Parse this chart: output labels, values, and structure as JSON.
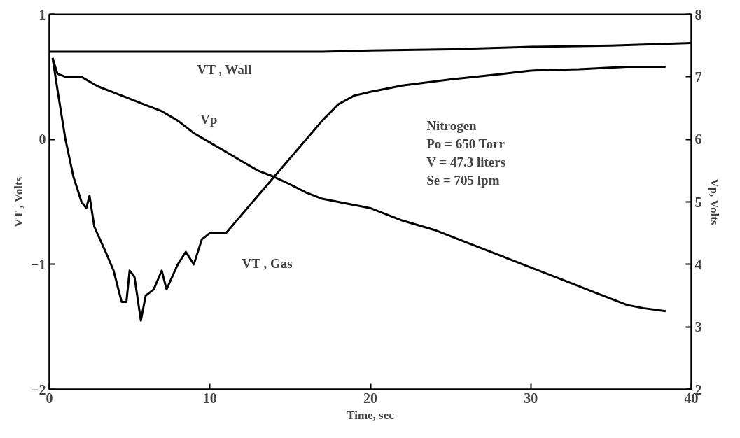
{
  "chart_data": {
    "type": "line",
    "xlabel": "Time, sec",
    "ylabel": "VT , Volts",
    "y2label": "Vp, Volts",
    "xlim": [
      0,
      40
    ],
    "xticks": [
      0,
      10,
      20,
      30,
      40
    ],
    "ylim": [
      -2,
      1
    ],
    "yticks": [
      -2,
      -1,
      0,
      1
    ],
    "y2lim": [
      2,
      8
    ],
    "y2ticks": [
      2,
      3,
      4,
      5,
      6,
      7,
      8
    ],
    "grid": false,
    "marker": "none",
    "line_style": "solid",
    "series": [
      {
        "color": "#000000",
        "x": [
          0,
          5,
          10,
          15,
          17,
          20,
          25,
          30,
          35,
          40
        ],
        "values": [
          0.7,
          0.7,
          0.7,
          0.7,
          0.7,
          0.71,
          0.72,
          0.74,
          0.75,
          0.77
        ]
      },
      {
        "color": "#000000",
        "axis": "y2",
        "x": [
          0.2,
          0.5,
          1,
          2,
          3,
          4,
          5,
          6,
          7,
          8,
          9,
          10,
          11,
          12,
          13,
          14,
          15,
          16,
          17,
          18,
          19,
          20,
          22,
          24,
          26,
          28,
          30,
          32,
          34,
          36,
          37,
          38.4
        ],
        "values": [
          7.3,
          7.05,
          7.0,
          7.0,
          6.85,
          6.75,
          6.65,
          6.55,
          6.45,
          6.3,
          6.1,
          5.95,
          5.8,
          5.65,
          5.5,
          5.4,
          5.28,
          5.15,
          5.05,
          5.0,
          4.95,
          4.9,
          4.7,
          4.55,
          4.35,
          4.15,
          3.95,
          3.75,
          3.55,
          3.35,
          3.3,
          3.25
        ]
      },
      {
        "color": "#000000",
        "x": [
          0.2,
          0.5,
          1,
          1.5,
          2,
          2.3,
          2.5,
          2.8,
          3.5,
          4,
          4.5,
          4.8,
          5,
          5.3,
          5.7,
          6,
          6.5,
          7,
          7.3,
          8,
          8.5,
          9,
          9.5,
          10,
          11,
          12,
          13,
          14,
          15,
          16,
          17,
          18,
          19,
          20,
          22,
          25,
          28,
          30,
          33,
          36,
          38.4
        ],
        "values": [
          0.65,
          0.4,
          0.0,
          -0.3,
          -0.5,
          -0.55,
          -0.45,
          -0.7,
          -0.9,
          -1.05,
          -1.3,
          -1.3,
          -1.05,
          -1.1,
          -1.45,
          -1.25,
          -1.2,
          -1.05,
          -1.2,
          -1.0,
          -0.9,
          -1.0,
          -0.8,
          -0.75,
          -0.75,
          -0.6,
          -0.45,
          -0.3,
          -0.15,
          0.0,
          0.15,
          0.28,
          0.35,
          0.38,
          0.43,
          0.48,
          0.52,
          0.55,
          0.56,
          0.58,
          0.58
        ]
      }
    ],
    "annotations": [
      "VT , Wall",
      "Vp",
      "VT , Gas",
      "Nitrogen",
      "Po = 650 Torr",
      "V = 47.3 liters",
      "Se = 705 lpm"
    ]
  }
}
